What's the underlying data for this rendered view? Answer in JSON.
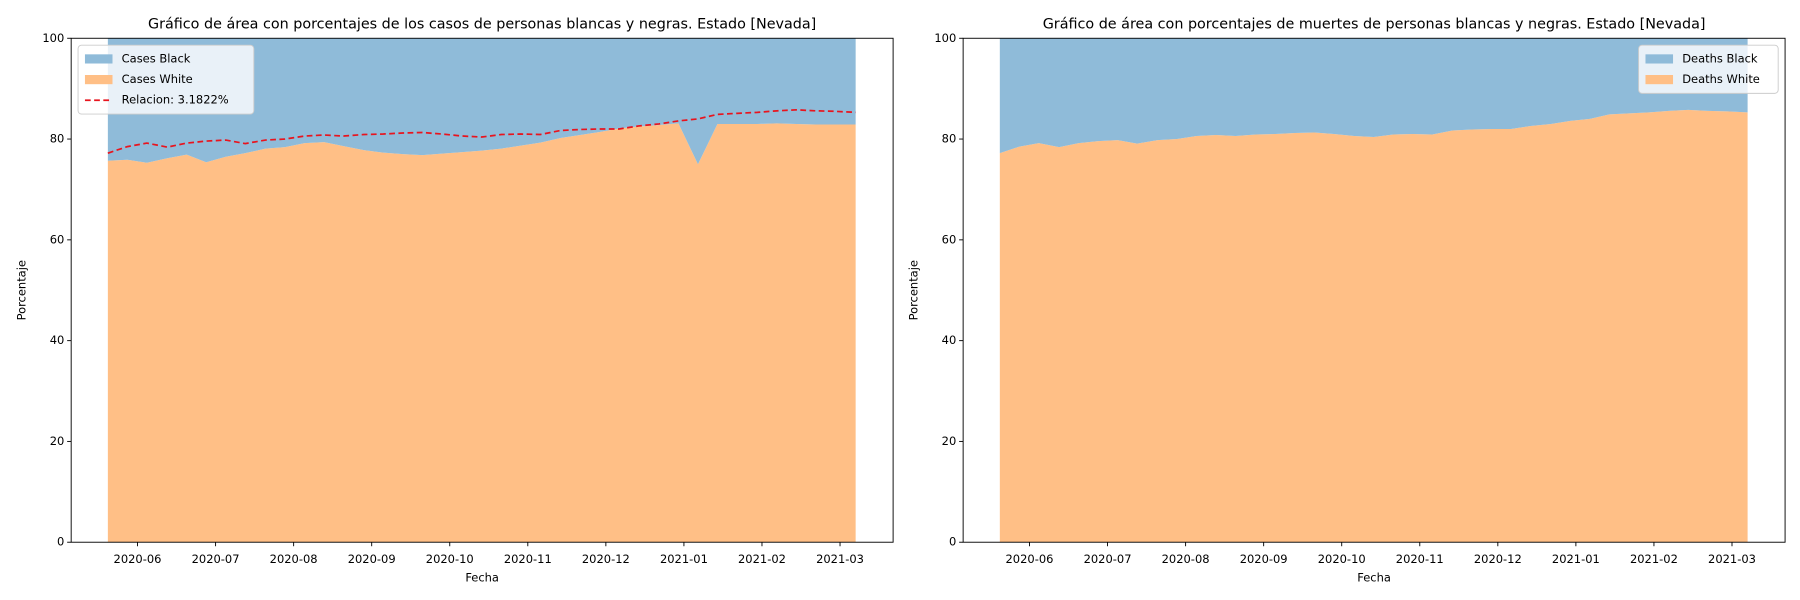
{
  "chart_data": [
    {
      "type": "area",
      "title": "Gráfico de área con porcentajes de los casos de personas blancas y negras. Estado [Nevada]",
      "xlabel": "Fecha",
      "ylabel": "Porcentaje",
      "x": [
        -0.38,
        -0.13,
        0.12,
        0.38,
        0.63,
        0.88,
        1.13,
        1.38,
        1.64,
        1.89,
        2.14,
        2.39,
        2.64,
        2.9,
        3.15,
        3.4,
        3.65,
        3.9,
        4.16,
        4.41,
        4.66,
        4.91,
        5.16,
        5.42,
        5.67,
        5.92,
        6.17,
        6.42,
        6.68,
        6.93,
        7.18,
        7.43,
        7.68,
        7.94,
        8.19,
        8.44,
        8.69,
        8.94,
        9.2
      ],
      "xlim": [
        -0.85,
        9.68
      ],
      "xticks": [
        {
          "value": 0,
          "label": "2020-06"
        },
        {
          "value": 1,
          "label": "2020-07"
        },
        {
          "value": 2,
          "label": "2020-08"
        },
        {
          "value": 3,
          "label": "2020-09"
        },
        {
          "value": 4,
          "label": "2020-10"
        },
        {
          "value": 5,
          "label": "2020-11"
        },
        {
          "value": 6,
          "label": "2020-12"
        },
        {
          "value": 7,
          "label": "2021-01"
        },
        {
          "value": 8,
          "label": "2021-02"
        },
        {
          "value": 9,
          "label": "2021-03"
        }
      ],
      "ylim": [
        0,
        100
      ],
      "yticks": [
        0,
        20,
        40,
        60,
        80,
        100
      ],
      "grid": false,
      "legend": "upper left",
      "series": [
        {
          "name": "Cases Black",
          "color": "#8fbbd9",
          "values": [
            24.3,
            24.1,
            24.7,
            23.8,
            23.1,
            24.6,
            23.5,
            22.8,
            21.9,
            21.6,
            20.8,
            20.6,
            21.4,
            22.2,
            22.7,
            23.0,
            23.2,
            22.9,
            22.6,
            22.3,
            21.9,
            21.3,
            20.7,
            19.8,
            19.2,
            18.6,
            17.9,
            17.5,
            17.2,
            16.9,
            25.0,
            17.0,
            17.0,
            17.0,
            16.9,
            17.0,
            17.1,
            17.1,
            17.1
          ]
        },
        {
          "name": "Cases White",
          "color": "#ffbf86",
          "values": [
            75.7,
            75.9,
            75.3,
            76.2,
            76.9,
            75.4,
            76.5,
            77.2,
            78.1,
            78.4,
            79.2,
            79.4,
            78.6,
            77.8,
            77.3,
            77.0,
            76.8,
            77.1,
            77.4,
            77.7,
            78.1,
            78.7,
            79.3,
            80.2,
            80.8,
            81.4,
            82.1,
            82.5,
            82.8,
            83.1,
            75.0,
            83.0,
            83.0,
            83.0,
            83.1,
            83.0,
            82.9,
            82.9,
            82.9
          ]
        },
        {
          "name": "Relacion: 3.1822%",
          "type": "line",
          "style": "dashed",
          "color": "#e8141e",
          "values": [
            77.2,
            78.5,
            79.2,
            78.4,
            79.2,
            79.6,
            79.8,
            79.1,
            79.8,
            80.0,
            80.6,
            80.8,
            80.6,
            80.9,
            81.0,
            81.2,
            81.3,
            81.0,
            80.6,
            80.4,
            80.9,
            81.0,
            80.9,
            81.7,
            81.9,
            82.0,
            82.0,
            82.6,
            83.0,
            83.6,
            84.0,
            84.9,
            85.1,
            85.3,
            85.6,
            85.8,
            85.6,
            85.5,
            85.3
          ]
        }
      ]
    },
    {
      "type": "area",
      "title": "Gráfico de área con porcentajes de muertes de personas blancas y negras. Estado [Nevada]",
      "xlabel": "Fecha",
      "ylabel": "Porcentaje",
      "x": [
        -0.38,
        -0.13,
        0.12,
        0.38,
        0.63,
        0.88,
        1.13,
        1.38,
        1.64,
        1.89,
        2.14,
        2.39,
        2.64,
        2.9,
        3.15,
        3.4,
        3.65,
        3.9,
        4.16,
        4.41,
        4.66,
        4.91,
        5.16,
        5.42,
        5.67,
        5.92,
        6.17,
        6.42,
        6.68,
        6.93,
        7.18,
        7.43,
        7.68,
        7.94,
        8.19,
        8.44,
        8.69,
        8.94,
        9.2
      ],
      "xlim": [
        -0.85,
        9.68
      ],
      "xticks": [
        {
          "value": 0,
          "label": "2020-06"
        },
        {
          "value": 1,
          "label": "2020-07"
        },
        {
          "value": 2,
          "label": "2020-08"
        },
        {
          "value": 3,
          "label": "2020-09"
        },
        {
          "value": 4,
          "label": "2020-10"
        },
        {
          "value": 5,
          "label": "2020-11"
        },
        {
          "value": 6,
          "label": "2020-12"
        },
        {
          "value": 7,
          "label": "2021-01"
        },
        {
          "value": 8,
          "label": "2021-02"
        },
        {
          "value": 9,
          "label": "2021-03"
        }
      ],
      "ylim": [
        0,
        100
      ],
      "yticks": [
        0,
        20,
        40,
        60,
        80,
        100
      ],
      "grid": false,
      "legend": "upper right",
      "series": [
        {
          "name": "Deaths Black",
          "color": "#8fbbd9",
          "values": [
            22.8,
            21.5,
            20.8,
            21.6,
            20.8,
            20.4,
            20.2,
            20.9,
            20.2,
            20.0,
            19.4,
            19.2,
            19.4,
            19.1,
            19.0,
            18.8,
            18.7,
            19.0,
            19.4,
            19.6,
            19.1,
            19.0,
            19.1,
            18.3,
            18.1,
            18.0,
            18.0,
            17.4,
            17.0,
            16.4,
            16.0,
            15.1,
            14.9,
            14.7,
            14.4,
            14.2,
            14.4,
            14.5,
            14.7
          ]
        },
        {
          "name": "Deaths White",
          "color": "#ffbf86",
          "values": [
            77.2,
            78.5,
            79.2,
            78.4,
            79.2,
            79.6,
            79.8,
            79.1,
            79.8,
            80.0,
            80.6,
            80.8,
            80.6,
            80.9,
            81.0,
            81.2,
            81.3,
            81.0,
            80.6,
            80.4,
            80.9,
            81.0,
            80.9,
            81.7,
            81.9,
            82.0,
            82.0,
            82.6,
            83.0,
            83.6,
            84.0,
            84.9,
            85.1,
            85.3,
            85.6,
            85.8,
            85.6,
            85.5,
            85.3
          ]
        }
      ]
    }
  ]
}
